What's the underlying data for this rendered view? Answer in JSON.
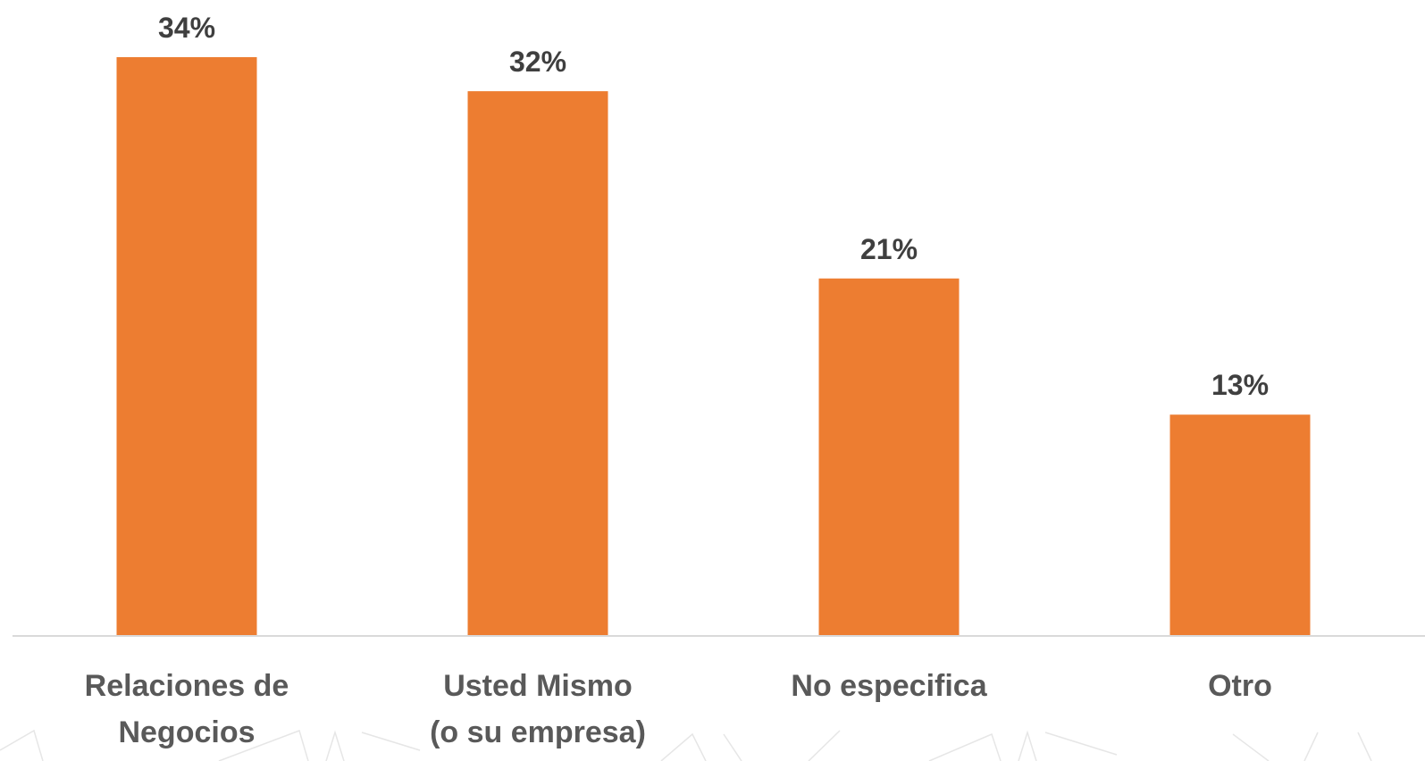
{
  "chart_data": {
    "type": "bar",
    "categories": [
      [
        "Relaciones de",
        "Negocios"
      ],
      [
        "Usted Mismo",
        "(o su empresa)"
      ],
      [
        "No especifica"
      ],
      [
        "Otro"
      ]
    ],
    "values": [
      34,
      32,
      21,
      13
    ],
    "value_labels": [
      "34%",
      "32%",
      "21%",
      "13%"
    ],
    "unit": "%",
    "ylim": [
      0,
      34
    ],
    "grid": false,
    "legend": "none",
    "colors": {
      "bar": "#ED7D31",
      "baseline": "#D9D9D9",
      "value_text": "#3F3F3F",
      "category_text": "#595959"
    }
  }
}
